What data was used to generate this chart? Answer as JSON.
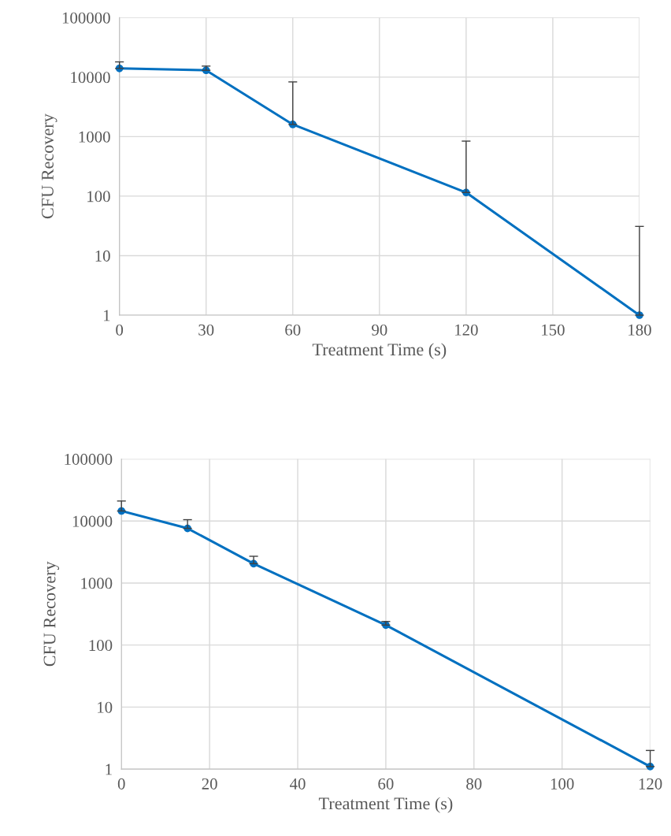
{
  "chart_data": [
    {
      "type": "line",
      "xlabel": "Treatment Time (s)",
      "ylabel": "CFU Recovery",
      "log": "y",
      "grid": true,
      "marker": "circle",
      "line_style": "solid",
      "x": [
        0,
        30,
        60,
        120,
        180
      ],
      "xlim": [
        0,
        180
      ],
      "xticks": [
        0,
        30,
        60,
        90,
        120,
        150,
        180
      ],
      "ylim": [
        1,
        100000
      ],
      "yticks": [
        1,
        10,
        100,
        1000,
        10000,
        100000
      ],
      "series": [
        {
          "color": "#0070c0",
          "values": [
            14000,
            13000,
            1600,
            115,
            1
          ],
          "errors": [
            [
              14000,
              18000
            ],
            [
              13000,
              15300
            ],
            [
              1600,
              8300
            ],
            [
              115,
              840
            ],
            [
              1,
              31
            ]
          ]
        }
      ]
    },
    {
      "type": "line",
      "xlabel": "Treatment Time (s)",
      "ylabel": "CFU Recovery",
      "log": "y",
      "grid": true,
      "marker": "circle",
      "line_style": "solid",
      "x": [
        0,
        15,
        30,
        60,
        120
      ],
      "xlim": [
        0,
        120
      ],
      "xticks": [
        0,
        20,
        40,
        60,
        80,
        100,
        120
      ],
      "ylim": [
        1,
        100000
      ],
      "yticks": [
        1,
        10,
        100,
        1000,
        10000,
        100000
      ],
      "series": [
        {
          "color": "#0070c0",
          "values": [
            14500,
            7600,
            2050,
            210,
            1.1
          ],
          "errors": [
            [
              14500,
              21000
            ],
            [
              7600,
              10500
            ],
            [
              2050,
              2700
            ],
            [
              210,
              240
            ],
            [
              1.1,
              2.0
            ]
          ]
        }
      ]
    }
  ]
}
